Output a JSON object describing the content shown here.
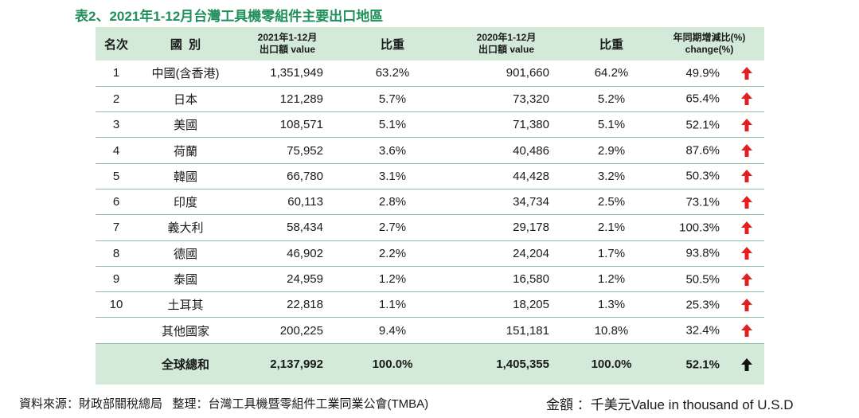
{
  "title": "表2、2021年1-12月台灣工具機零組件主要出口地區",
  "colors": {
    "title": "#1e8f5a",
    "header_bg": "#d3ead9",
    "up_arrow": "#e02020",
    "total_arrow": "#111111"
  },
  "headers": {
    "rank": "名次",
    "country": "國  別",
    "value2021_line1": "2021年1-12月",
    "value2021_line2": "出口額 value",
    "share2021": "比重",
    "value2020_line1": "2020年1-12月",
    "value2020_line2": "出口額 value",
    "share2020": "比重",
    "change_line1": "年同期增減比(%)",
    "change_line2": "change(%)"
  },
  "rows": [
    {
      "rank": "1",
      "country": "中國(含香港)",
      "v2021": "1,351,949",
      "s2021": "63.2%",
      "v2020": "901,660",
      "s2020": "64.2%",
      "change": "49.9%",
      "trend": "up-arrow-icon"
    },
    {
      "rank": "2",
      "country": "日本",
      "v2021": "121,289",
      "s2021": "5.7%",
      "v2020": "73,320",
      "s2020": "5.2%",
      "change": "65.4%",
      "trend": "up-arrow-icon"
    },
    {
      "rank": "3",
      "country": "美國",
      "v2021": "108,571",
      "s2021": "5.1%",
      "v2020": "71,380",
      "s2020": "5.1%",
      "change": "52.1%",
      "trend": "up-arrow-icon"
    },
    {
      "rank": "4",
      "country": "荷蘭",
      "v2021": "75,952",
      "s2021": "3.6%",
      "v2020": "40,486",
      "s2020": "2.9%",
      "change": "87.6%",
      "trend": "up-arrow-icon"
    },
    {
      "rank": "5",
      "country": "韓國",
      "v2021": "66,780",
      "s2021": "3.1%",
      "v2020": "44,428",
      "s2020": "3.2%",
      "change": "50.3%",
      "trend": "up-arrow-icon"
    },
    {
      "rank": "6",
      "country": "印度",
      "v2021": "60,113",
      "s2021": "2.8%",
      "v2020": "34,734",
      "s2020": "2.5%",
      "change": "73.1%",
      "trend": "up-arrow-icon"
    },
    {
      "rank": "7",
      "country": "義大利",
      "v2021": "58,434",
      "s2021": "2.7%",
      "v2020": "29,178",
      "s2020": "2.1%",
      "change": "100.3%",
      "trend": "up-arrow-icon"
    },
    {
      "rank": "8",
      "country": "德國",
      "v2021": "46,902",
      "s2021": "2.2%",
      "v2020": "24,204",
      "s2020": "1.7%",
      "change": "93.8%",
      "trend": "up-arrow-icon"
    },
    {
      "rank": "9",
      "country": "泰國",
      "v2021": "24,959",
      "s2021": "1.2%",
      "v2020": "16,580",
      "s2020": "1.2%",
      "change": "50.5%",
      "trend": "up-arrow-icon"
    },
    {
      "rank": "10",
      "country": "土耳其",
      "v2021": "22,818",
      "s2021": "1.1%",
      "v2020": "18,205",
      "s2020": "1.3%",
      "change": "25.3%",
      "trend": "up-arrow-icon"
    },
    {
      "rank": "",
      "country": "其他國家",
      "v2021": "200,225",
      "s2021": "9.4%",
      "v2020": "151,181",
      "s2020": "10.8%",
      "change": "32.4%",
      "trend": "up-arrow-icon"
    }
  ],
  "total": {
    "label": "全球總和",
    "v2021": "2,137,992",
    "s2021": "100.0%",
    "v2020": "1,405,355",
    "s2020": "100.0%",
    "change": "52.1%",
    "trend": "up-arrow-icon"
  },
  "footer": {
    "source": "資料來源：財政部關稅總局   整理：台灣工具機暨零組件工業同業公會(TMBA)",
    "unit": "金額 ：千美元Value in thousand of U.S.D"
  }
}
